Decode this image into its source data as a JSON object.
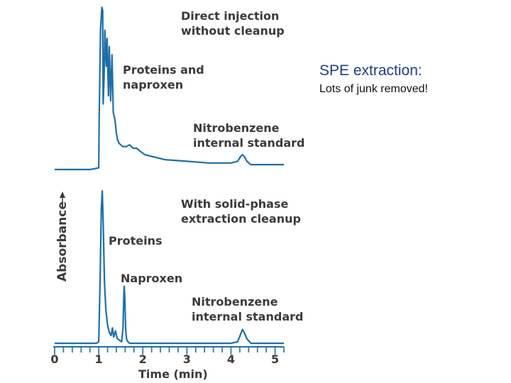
{
  "chart_data": {
    "type": "line",
    "xlabel": "Time (min)",
    "ylabel": "Absorbance",
    "xlim": [
      0,
      5.2
    ],
    "x_ticks": [
      "0",
      "1",
      "2",
      "3",
      "4",
      "5"
    ],
    "grid": false,
    "panels": [
      {
        "title_lines": [
          "Direct injection",
          "without cleanup"
        ],
        "annotations": [
          {
            "lines": [
              "Proteins and",
              "naproxen"
            ]
          },
          {
            "lines": [
              "Nitrobenzene",
              "internal standard"
            ]
          }
        ],
        "series": [
          {
            "x": [
              0,
              0.8,
              1.0,
              1.01,
              1.04,
              1.07,
              1.09,
              1.1,
              1.12,
              1.14,
              1.17,
              1.19,
              1.22,
              1.24,
              1.27,
              1.3,
              1.33,
              1.37,
              1.4,
              1.43,
              1.46,
              1.5,
              1.55,
              1.62,
              1.7,
              1.78,
              1.86,
              1.95,
              2.05,
              2.2,
              2.5,
              3.0,
              3.5,
              4.0,
              4.15,
              4.22,
              4.26,
              4.3,
              4.36,
              4.45,
              4.8,
              5.2
            ],
            "y": [
              0.0,
              0.0,
              0.01,
              0.3,
              0.85,
              0.99,
              0.97,
              0.4,
              0.55,
              0.85,
              0.63,
              0.8,
              0.45,
              0.75,
              0.42,
              0.7,
              0.35,
              0.3,
              0.22,
              0.18,
              0.16,
              0.15,
              0.14,
              0.14,
              0.15,
              0.13,
              0.13,
              0.11,
              0.09,
              0.08,
              0.06,
              0.05,
              0.04,
              0.04,
              0.05,
              0.08,
              0.09,
              0.08,
              0.05,
              0.03,
              0.03,
              0.03
            ]
          }
        ]
      },
      {
        "title_lines": [
          "With solid-phase",
          "extraction cleanup"
        ],
        "annotations": [
          {
            "lines": [
              "Proteins"
            ]
          },
          {
            "lines": [
              "Naproxen"
            ]
          },
          {
            "lines": [
              "Nitrobenzene",
              "internal standard"
            ]
          }
        ],
        "series": [
          {
            "x": [
              0,
              0.95,
              1.0,
              1.03,
              1.06,
              1.08,
              1.1,
              1.13,
              1.16,
              1.2,
              1.24,
              1.28,
              1.31,
              1.34,
              1.38,
              1.42,
              1.47,
              1.52,
              1.55,
              1.57,
              1.58,
              1.59,
              1.61,
              1.63,
              1.66,
              1.7,
              2.0,
              3.0,
              4.0,
              4.15,
              4.22,
              4.26,
              4.3,
              4.36,
              4.45,
              5.2
            ],
            "y": [
              0.0,
              0.0,
              0.01,
              0.4,
              0.88,
              0.99,
              0.8,
              0.4,
              0.22,
              0.12,
              0.07,
              0.05,
              0.1,
              0.04,
              0.08,
              0.03,
              0.02,
              0.01,
              0.1,
              0.32,
              0.37,
              0.3,
              0.1,
              0.03,
              0.01,
              0.0,
              0.0,
              0.0,
              0.0,
              0.01,
              0.06,
              0.09,
              0.07,
              0.03,
              0.0,
              0.0
            ]
          }
        ]
      }
    ]
  },
  "note": {
    "title": "SPE extraction:",
    "subtitle": "Lots of junk removed!"
  },
  "colors": {
    "trace": "#1e6fa8",
    "axis": "#1e6fa8",
    "label_text": "#3a3a3a",
    "note_title": "#1f3c8a"
  }
}
